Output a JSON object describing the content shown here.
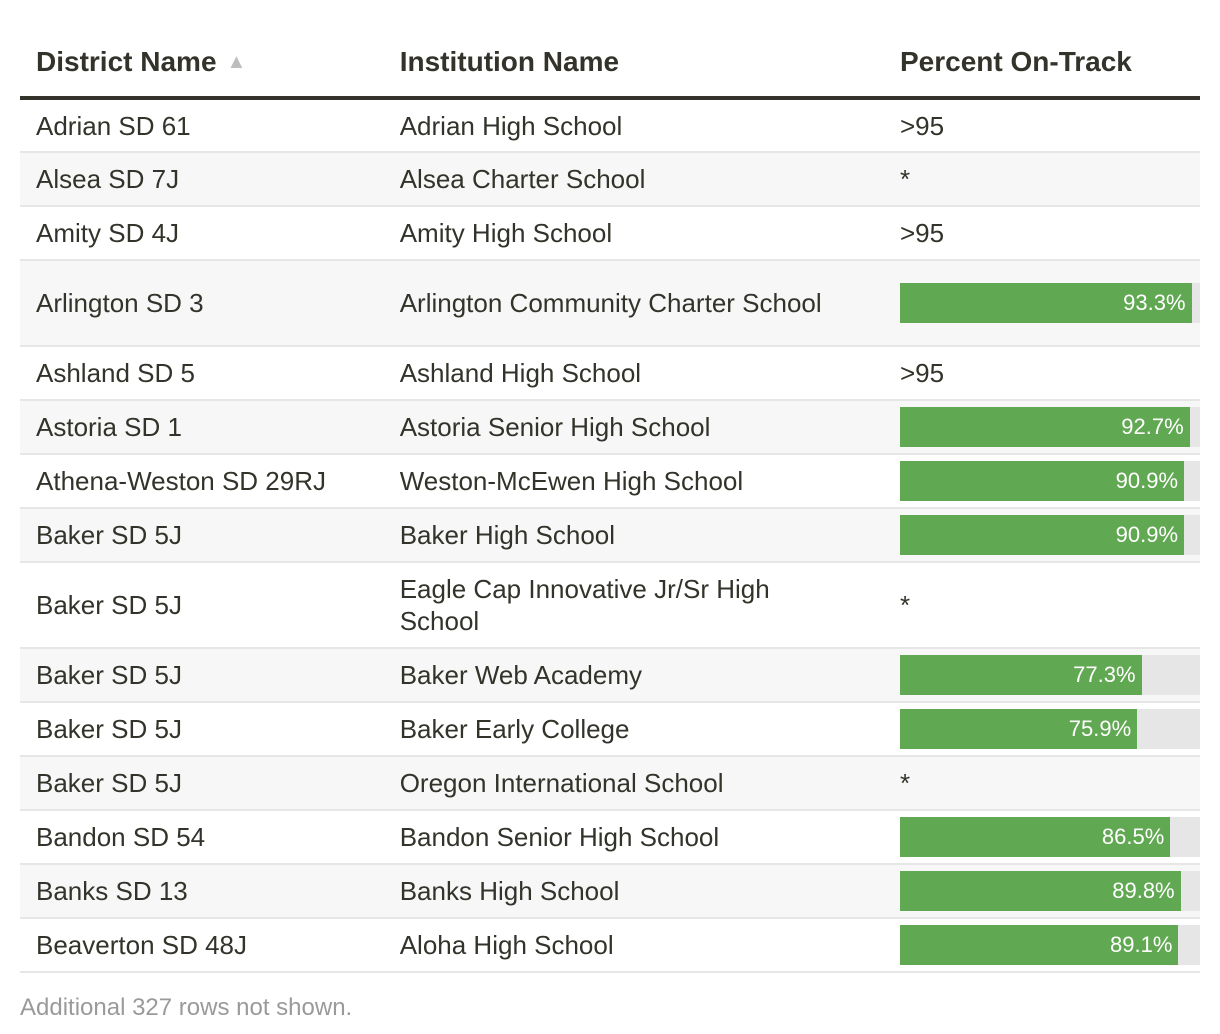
{
  "columns": [
    {
      "label": "District Name",
      "sort": "ascending"
    },
    {
      "label": "Institution Name"
    },
    {
      "label": "Percent On-Track"
    }
  ],
  "colors": {
    "bar": "#61a852",
    "track": "#e6e6e6",
    "text": "#33332b"
  },
  "chart_data": {
    "type": "table",
    "bar_scale_max": 96,
    "rows": [
      {
        "district": "Adrian SD 61",
        "institution": "Adrian High School",
        "percent": ">95"
      },
      {
        "district": "Alsea SD 7J",
        "institution": "Alsea Charter School",
        "percent": "*"
      },
      {
        "district": "Amity SD 4J",
        "institution": "Amity High School",
        "percent": ">95"
      },
      {
        "district": "Arlington SD 3",
        "institution": "Arlington Community Charter School",
        "percent": "93.3%",
        "value": 93.3
      },
      {
        "district": "Ashland SD 5",
        "institution": "Ashland High School",
        "percent": ">95"
      },
      {
        "district": "Astoria SD 1",
        "institution": "Astoria Senior High School",
        "percent": "92.7%",
        "value": 92.7
      },
      {
        "district": "Athena-Weston SD 29RJ",
        "institution": "Weston-McEwen High School",
        "percent": "90.9%",
        "value": 90.9
      },
      {
        "district": "Baker SD 5J",
        "institution": "Baker High School",
        "percent": "90.9%",
        "value": 90.9
      },
      {
        "district": "Baker SD 5J",
        "institution": "Eagle Cap Innovative Jr/Sr High School",
        "percent": "*"
      },
      {
        "district": "Baker SD 5J",
        "institution": "Baker Web Academy",
        "percent": "77.3%",
        "value": 77.3
      },
      {
        "district": "Baker SD 5J",
        "institution": "Baker Early College",
        "percent": "75.9%",
        "value": 75.9
      },
      {
        "district": "Baker SD 5J",
        "institution": "Oregon International School",
        "percent": "*"
      },
      {
        "district": "Bandon SD 54",
        "institution": "Bandon Senior High School",
        "percent": "86.5%",
        "value": 86.5
      },
      {
        "district": "Banks SD 13",
        "institution": "Banks High School",
        "percent": "89.8%",
        "value": 89.8
      },
      {
        "district": "Beaverton SD 48J",
        "institution": "Aloha High School",
        "percent": "89.1%",
        "value": 89.1
      }
    ]
  },
  "footer": {
    "note": "Additional 327 rows not shown."
  }
}
